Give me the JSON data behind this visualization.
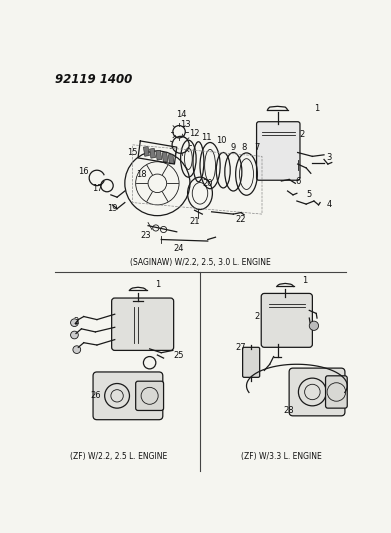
{
  "title_code": "92119 1400",
  "bg_color": "#f5f5f0",
  "line_color": "#1a1a1a",
  "text_color": "#111111",
  "top_caption": "(SAGINAW) W/2.2, 2.5, 3.0 L. ENGINE",
  "bottom_left_caption": "(ZF) W/2.2, 2.5 L. ENGINE",
  "bottom_right_caption": "(ZF) W/3.3 L. ENGINE",
  "fig_w": 3.91,
  "fig_h": 5.33,
  "dpi": 100
}
